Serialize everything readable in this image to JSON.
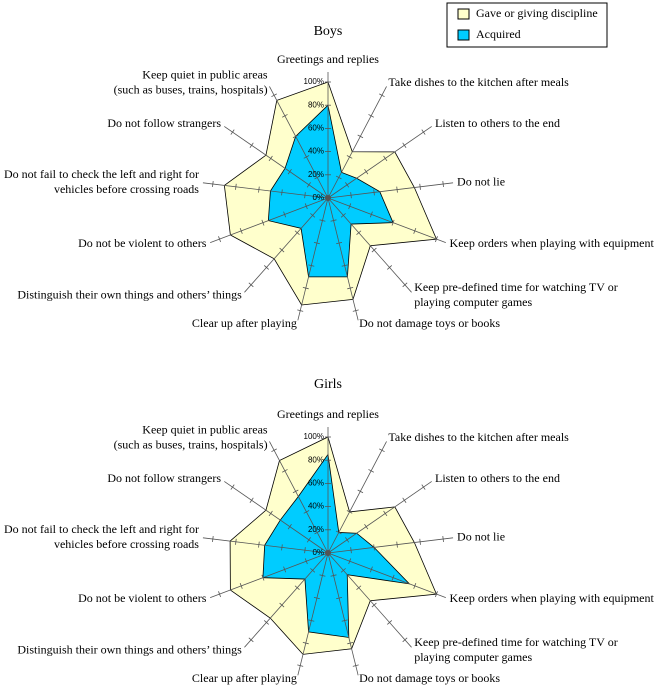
{
  "chart_data": [
    {
      "type": "radar",
      "title": "Boys",
      "categories": [
        "Greetings and replies",
        "Take dishes to the kitchen after meals",
        "Listen to others to the end",
        "Do not lie",
        "Keep orders when playing with equipment",
        "Keep pre-defined time for watching TV or\nplaying computer games",
        "Do not damage toys or books",
        "Clear up after playing",
        "Distinguish their own things and others’ things",
        "Do not be violent to others",
        "Do not fail to check the left and right for\nvehicles before crossing roads",
        "Do not follow strangers",
        "Keep quiet in public areas\n(such as buses, trains, hospitals)"
      ],
      "series": [
        {
          "name": "Gave or giving discipline",
          "color": "#ffffcc",
          "values": [
            100,
            45,
            70,
            75,
            100,
            55,
            90,
            95,
            70,
            90,
            90,
            65,
            95
          ]
        },
        {
          "name": "Acquired",
          "color": "#00ccff",
          "values": [
            80,
            25,
            30,
            45,
            60,
            30,
            70,
            70,
            35,
            55,
            50,
            45,
            60
          ]
        }
      ],
      "ylim": [
        0,
        100
      ],
      "yticks": [
        {
          "value": 0,
          "label": "0%"
        },
        {
          "value": 20,
          "label": "20%"
        },
        {
          "value": 40,
          "label": "40%"
        },
        {
          "value": 60,
          "label": "60%"
        },
        {
          "value": 80,
          "label": "80%"
        },
        {
          "value": 100,
          "label": "100%"
        }
      ]
    },
    {
      "type": "radar",
      "title": "Girls",
      "categories": [
        "Greetings and replies",
        "Take dishes to the kitchen after meals",
        "Listen to others to the end",
        "Do not lie",
        "Keep orders when playing with equipment",
        "Keep pre-defined time for watching TV or\nplaying computer games",
        "Do not damage toys or books",
        "Clear up after playing",
        "Distinguish their own things and others’ things",
        "Do not be violent to others",
        "Do not fail to check the left and right for\nvehicles before crossing roads",
        "Do not follow strangers",
        "Keep quiet in public areas\n(such as buses, trains, hospitals)"
      ],
      "series": [
        {
          "color": "#ffffcc",
          "values": [
            100,
            40,
            70,
            75,
            100,
            55,
            85,
            90,
            75,
            90,
            85,
            65,
            90
          ]
        },
        {
          "color": "#00ccff",
          "values": [
            85,
            20,
            30,
            40,
            75,
            25,
            75,
            70,
            30,
            60,
            55,
            50,
            55
          ]
        }
      ],
      "ylim": [
        0,
        100
      ],
      "yticks": [
        {
          "value": 0,
          "label": "0%"
        },
        {
          "value": 20,
          "label": "20%"
        },
        {
          "value": 40,
          "label": "40%"
        },
        {
          "value": 60,
          "label": "60%"
        },
        {
          "value": 80,
          "label": "80%"
        },
        {
          "value": 100,
          "label": "100%"
        }
      ]
    }
  ]
}
